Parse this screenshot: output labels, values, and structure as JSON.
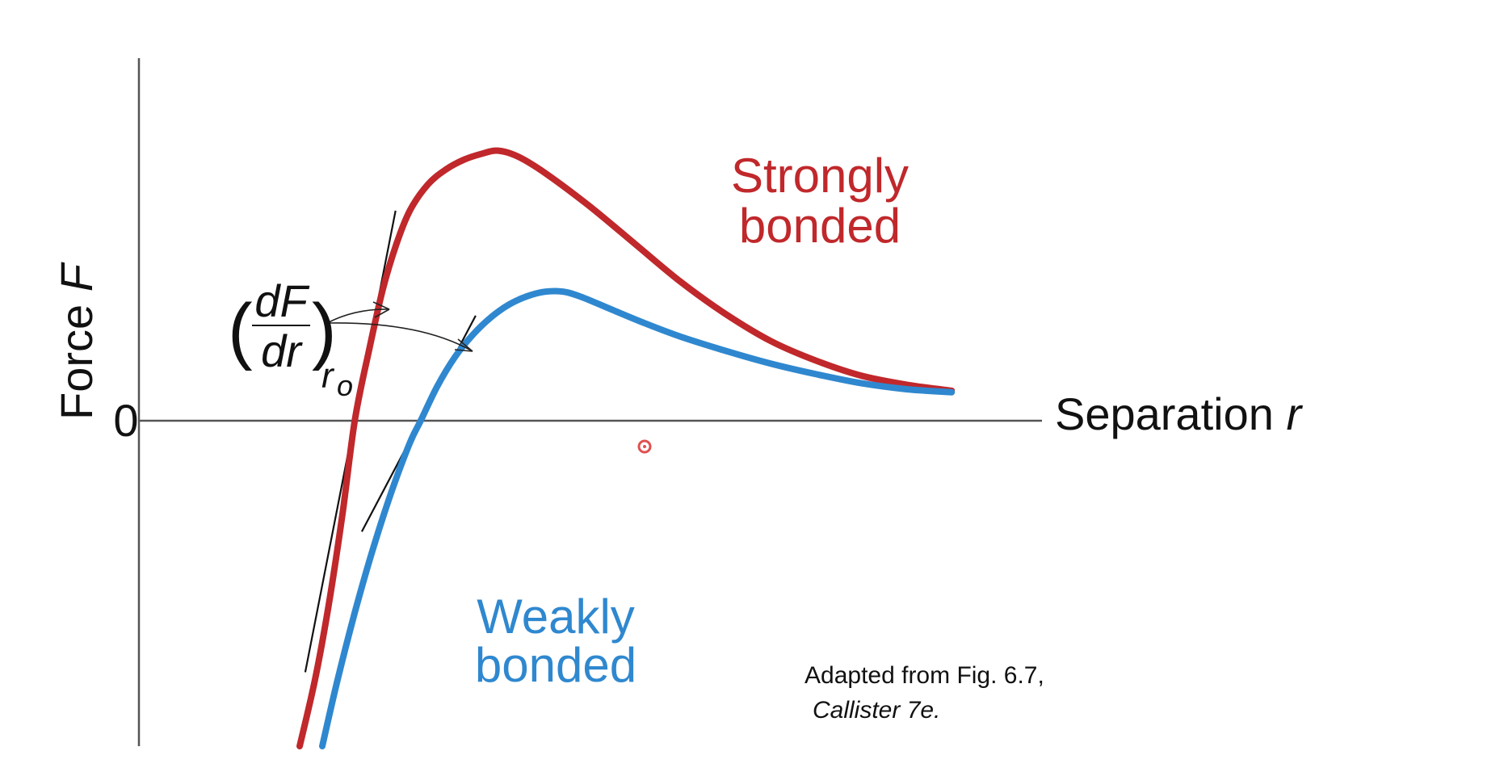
{
  "chart_data": {
    "type": "line",
    "title": "",
    "xlabel": "Separation",
    "xlabel_symbol": "r",
    "ylabel": "Force",
    "ylabel_symbol": "F",
    "y_zero_tick": "0",
    "x_range": [
      0,
      10
    ],
    "y_range": [
      -4.4,
      3.8
    ],
    "grid": false,
    "series": [
      {
        "name": "Strongly bonded",
        "color": "#c0282b",
        "label_lines": [
          "Strongly",
          "bonded"
        ],
        "r0": 2.39,
        "slope_at_r0": 6.2,
        "x": [
          1.78,
          1.95,
          2.1,
          2.25,
          2.39,
          2.55,
          2.7,
          2.85,
          3.0,
          3.2,
          3.4,
          3.6,
          3.8,
          3.98,
          4.2,
          4.5,
          5.0,
          5.5,
          6.0,
          6.5,
          7.0,
          7.5,
          8.0,
          8.5,
          9.0
        ],
        "y": [
          -4.4,
          -3.5,
          -2.5,
          -1.3,
          0.0,
          0.95,
          1.75,
          2.35,
          2.8,
          3.15,
          3.35,
          3.48,
          3.56,
          3.6,
          3.52,
          3.3,
          2.85,
          2.35,
          1.85,
          1.42,
          1.06,
          0.8,
          0.6,
          0.48,
          0.4
        ]
      },
      {
        "name": "Weakly bonded",
        "color": "#2f88cf",
        "label_lines": [
          "Weakly",
          "bonded"
        ],
        "r0": 3.12,
        "slope_at_r0": 2.3,
        "x": [
          2.03,
          2.2,
          2.4,
          2.6,
          2.8,
          3.0,
          3.12,
          3.3,
          3.5,
          3.7,
          3.9,
          4.1,
          4.3,
          4.5,
          4.7,
          4.9,
          5.2,
          5.6,
          6.0,
          6.5,
          7.0,
          7.5,
          8.0,
          8.5,
          9.0
        ],
        "y": [
          -4.4,
          -3.5,
          -2.55,
          -1.7,
          -0.95,
          -0.3,
          0.0,
          0.45,
          0.85,
          1.15,
          1.38,
          1.55,
          1.66,
          1.72,
          1.72,
          1.65,
          1.5,
          1.3,
          1.12,
          0.93,
          0.76,
          0.62,
          0.5,
          0.42,
          0.38
        ]
      }
    ],
    "annotations": {
      "derivative": {
        "numerator": "dF",
        "denominator": "dr",
        "subscript": "r",
        "subscript_sub": "o"
      },
      "source_line1": "Adapted from Fig. 6.7,",
      "source_line2": "Callister 7e."
    }
  }
}
